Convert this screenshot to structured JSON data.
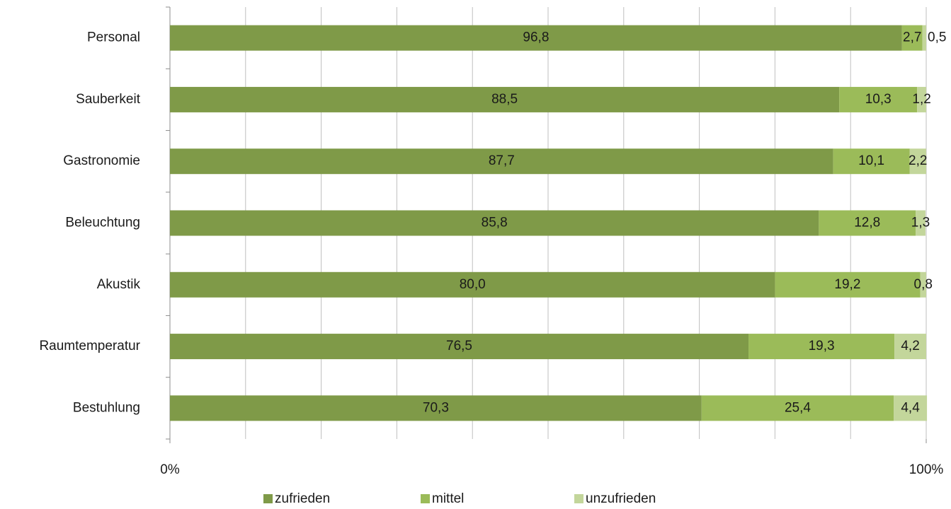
{
  "chart_data": {
    "type": "stacked-barh",
    "categories": [
      "Personal",
      "Sauberkeit",
      "Gastronomie",
      "Beleuchtung",
      "Akustik",
      "Raumtemperatur",
      "Bestuhlung"
    ],
    "series": [
      {
        "name": "zufrieden",
        "color": "#7f9a48",
        "values": [
          96.8,
          88.5,
          87.7,
          85.8,
          80.0,
          76.5,
          70.3
        ],
        "value_labels": [
          "96,8",
          "88,5",
          "87,7",
          "85,8",
          "80,0",
          "76,5",
          "70,3"
        ]
      },
      {
        "name": "mittel",
        "color": "#9bbb59",
        "values": [
          2.7,
          10.3,
          10.1,
          12.8,
          19.2,
          19.3,
          25.4
        ],
        "value_labels": [
          "2,7",
          "10,3",
          "10,1",
          "12,8",
          "19,2",
          "19,3",
          "25,4"
        ]
      },
      {
        "name": "unzufrieden",
        "color": "#c3d69b",
        "values": [
          0.5,
          1.2,
          2.2,
          1.3,
          0.8,
          4.2,
          4.4
        ],
        "value_labels": [
          "0,5",
          "1,2",
          "2,2",
          "1,3",
          "0,8",
          "4,2",
          "4,4"
        ]
      }
    ],
    "xlim": [
      0,
      100
    ],
    "xticks": [
      {
        "value": 0,
        "label": "0%"
      },
      {
        "value": 100,
        "label": "100%"
      }
    ],
    "xgrid": [
      10,
      20,
      30,
      40,
      50,
      60,
      70,
      80,
      90,
      100
    ],
    "grid": true,
    "legend": "bottom"
  }
}
